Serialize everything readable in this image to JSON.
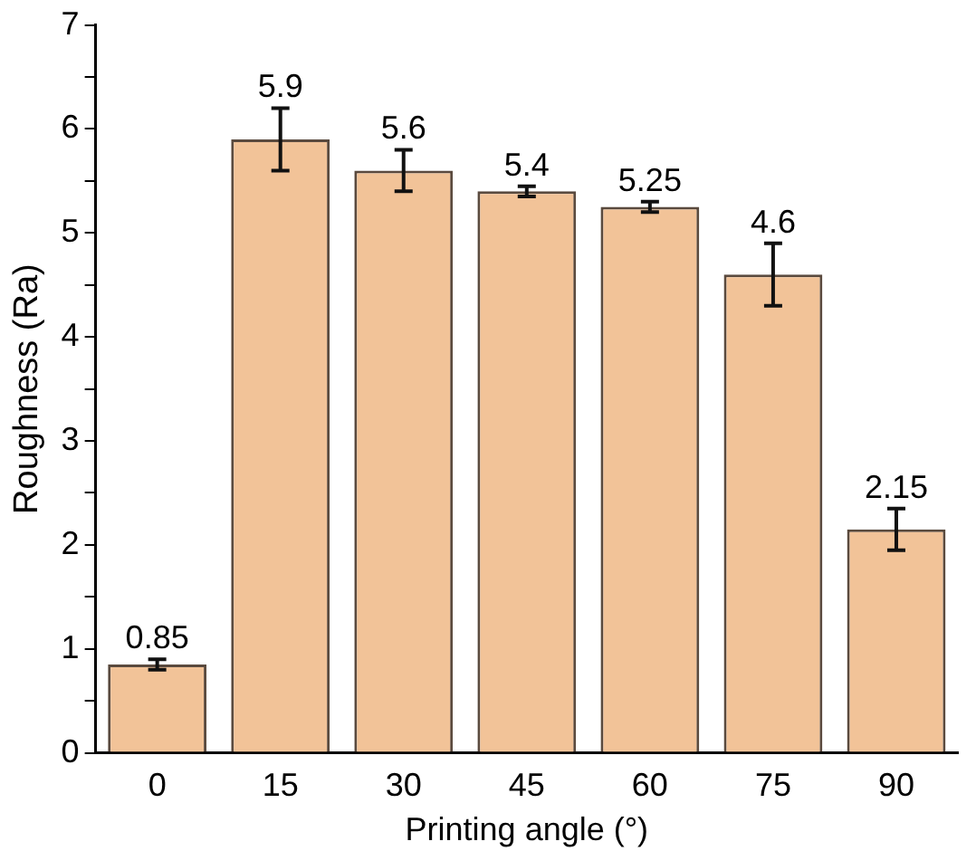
{
  "chart_data": {
    "type": "bar",
    "xlabel": "Printing angle (°)",
    "ylabel": "Roughness (Ra)",
    "categories": [
      "0",
      "15",
      "30",
      "45",
      "60",
      "75",
      "90"
    ],
    "values": [
      0.85,
      5.9,
      5.6,
      5.4,
      5.25,
      4.6,
      2.15
    ],
    "errors": [
      0.05,
      0.3,
      0.2,
      0.05,
      0.05,
      0.3,
      0.2
    ],
    "color": "#f2c398",
    "ylim": [
      0,
      7
    ],
    "yticks": [
      0,
      {
        "value": 0.5,
        "label": null
      },
      1,
      {
        "value": 1.5,
        "label": null
      },
      2,
      {
        "value": 2.5,
        "label": null
      },
      3,
      {
        "value": 3.5,
        "label": null
      },
      4,
      {
        "value": 4.5,
        "label": null
      },
      5,
      {
        "value": 5.5,
        "label": null
      },
      6,
      {
        "value": 6.5,
        "label": null
      },
      7
    ],
    "data_labels": true,
    "grid": false,
    "legend": false
  }
}
